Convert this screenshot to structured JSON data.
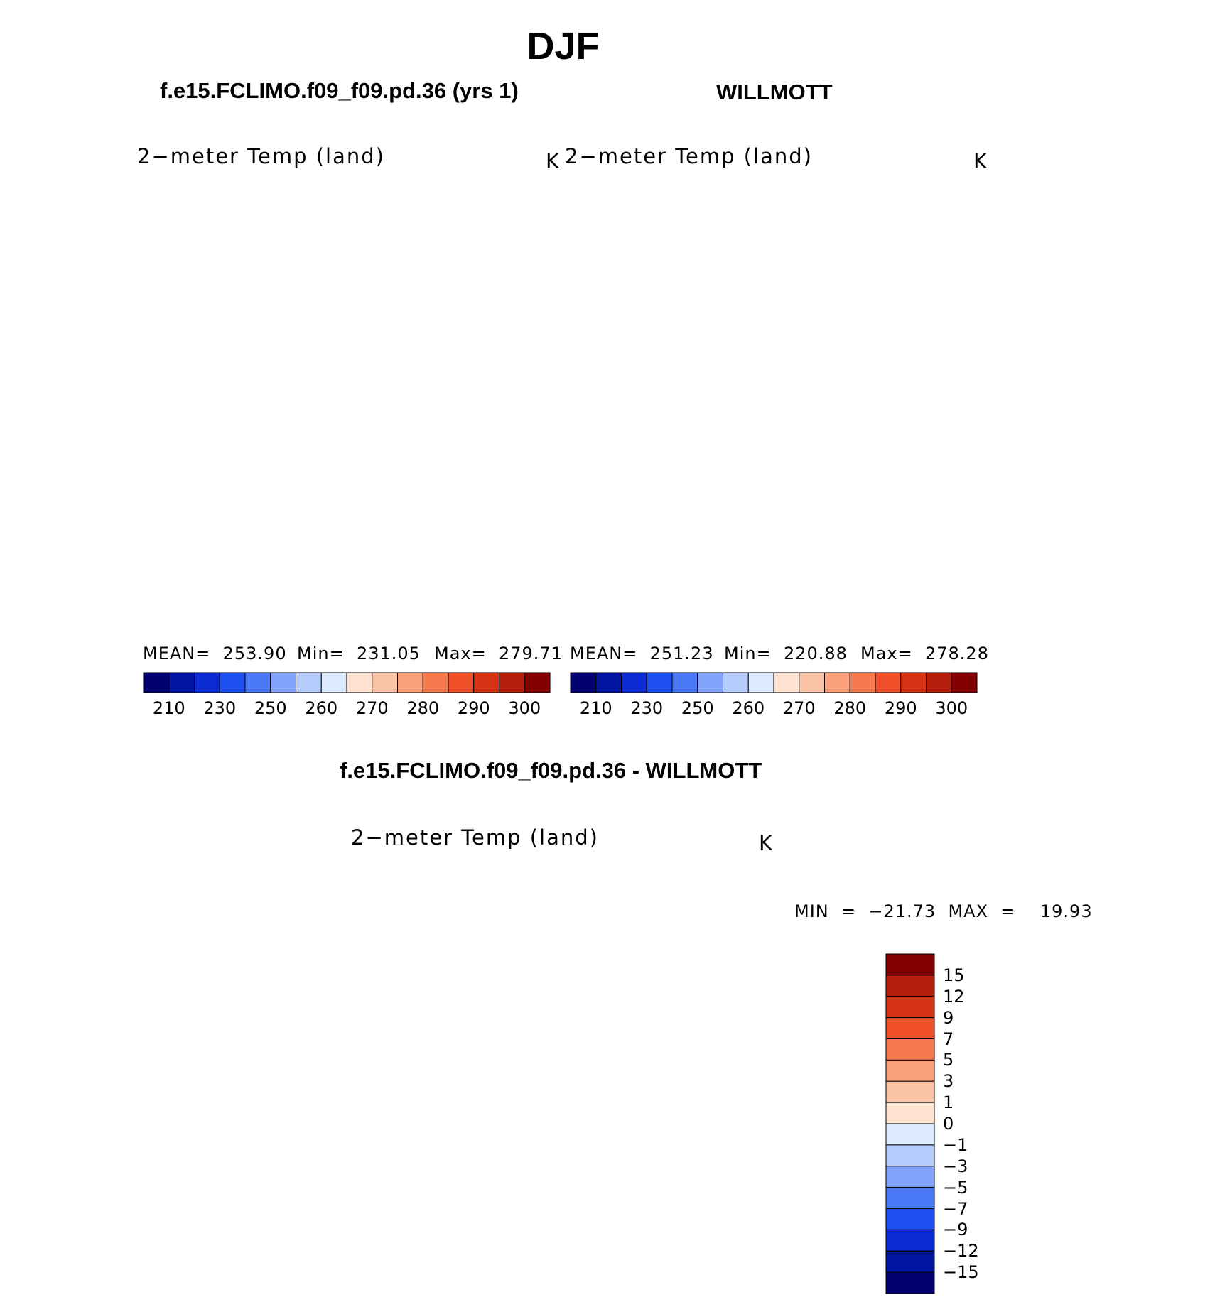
{
  "figure": {
    "title": "DJF",
    "panels": [
      {
        "id": "model",
        "header": "f.e15.FCLIMO.f09_f09.pd.36 (yrs 1)",
        "variable": "2−meter Temp (land)",
        "units": "K",
        "stats": {
          "mean": "MEAN=  253.90",
          "min": "Min=  231.05",
          "max": "Max=  279.71"
        }
      },
      {
        "id": "obs",
        "header": "WILLMOTT",
        "variable": "2−meter Temp (land)",
        "units": "K",
        "stats": {
          "mean": "MEAN=  251.23",
          "min": "Min=  220.88",
          "max": "Max=  278.28"
        }
      },
      {
        "id": "diff",
        "header": "f.e15.FCLIMO.f09_f09.pd.36 - WILLMOTT",
        "variable": "2−meter Temp (land)",
        "units": "K",
        "stats": {
          "minmax": "MIN  =  −21.73  MAX  =    19.93"
        }
      }
    ]
  },
  "colorbars": {
    "absolute": {
      "tick_labels": [
        "210",
        "230",
        "250",
        "260",
        "270",
        "280",
        "290",
        "300"
      ],
      "colors": [
        "#00006e",
        "#0014a0",
        "#0a2ad2",
        "#1e50f0",
        "#4a78f5",
        "#82a4fa",
        "#b4cdfc",
        "#dcebfd",
        "#fde3d0",
        "#fcc4a6",
        "#faa07a",
        "#f57a4e",
        "#f0502a",
        "#d83214",
        "#b41e0a",
        "#820000"
      ]
    },
    "difference": {
      "tick_labels": [
        "15",
        "12",
        "9",
        "7",
        "5",
        "3",
        "1",
        "0",
        "−1",
        "−3",
        "−5",
        "−7",
        "−9",
        "−12",
        "−15"
      ],
      "colors": [
        "#820000",
        "#b41e0a",
        "#d83214",
        "#f0502a",
        "#f57a4e",
        "#faa07a",
        "#fcc4a6",
        "#fde3d0",
        "#dcebfd",
        "#b4cdfc",
        "#82a4fa",
        "#4a78f5",
        "#1e50f0",
        "#0a2ad2",
        "#0014a0",
        "#00006e"
      ]
    }
  }
}
